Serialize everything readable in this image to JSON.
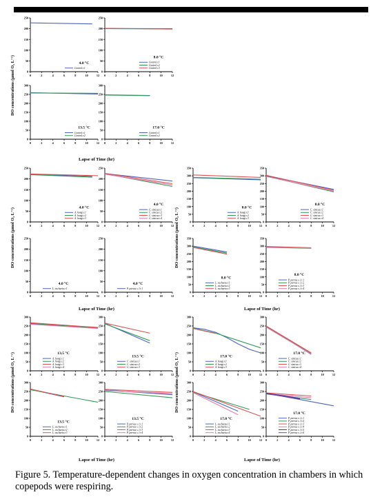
{
  "caption": "Figure 5. Temperature-dependent changes in oxygen concentration in chambers in which copepods were respiring.",
  "colors": {
    "blue": "#4b63c8",
    "green": "#2e9a55",
    "red": "#e05050",
    "pink": "#e07aa8",
    "navy": "#303a9a",
    "purple": "#7a3aa0"
  },
  "blocks": [
    {
      "ylabel": "DO concentrations (μmol O₂ L⁻¹)",
      "xlabel": "Lapse  of  Time (hr)"
    },
    {
      "ylabel": "DO concentrations (μmol O₂ L⁻¹)",
      "xlabel": "Lapse  of  Time (hr)",
      "ylabel2": "DO concentrations (μmol O₂ L⁻¹)",
      "xlabel2": "Lapse  of  Time (hr)"
    },
    {
      "ylabel": "DO concentrations (μmol O₂ L⁻¹)",
      "xlabel": "Lapse  of  Time (hr)",
      "ylabel2": "DO concentrations (μmol O₂ L⁻¹)",
      "xlabel2": "Lapse  of  Time (hr)"
    }
  ],
  "chart_data": [
    {
      "type": "line",
      "temp": "4.0 °C",
      "xlim": [
        0,
        12
      ],
      "ylim": [
        0,
        250
      ],
      "series": [
        {
          "name": "Control.r.1",
          "color": "blue",
          "x": [
            0,
            11
          ],
          "y": [
            227,
            222
          ]
        }
      ]
    },
    {
      "type": "line",
      "temp": "8.0 °C",
      "xlim": [
        0,
        12
      ],
      "ylim": [
        0,
        250
      ],
      "series": [
        {
          "name": "Control.r.1",
          "color": "blue",
          "x": [
            0,
            12
          ],
          "y": [
            201,
            200
          ]
        },
        {
          "name": "Control.r.2",
          "color": "green",
          "x": [
            0,
            12
          ],
          "y": [
            200,
            199
          ]
        },
        {
          "name": "Control.r.3",
          "color": "red",
          "x": [
            0,
            12
          ],
          "y": [
            202,
            198
          ]
        }
      ]
    },
    {
      "type": "line",
      "temp": "13.5 °C",
      "xlim": [
        0,
        12
      ],
      "ylim": [
        0,
        300
      ],
      "series": [
        {
          "name": "Control.r.1",
          "color": "blue",
          "x": [
            0,
            12
          ],
          "y": [
            260,
            252
          ]
        },
        {
          "name": "Control.r.2",
          "color": "green",
          "x": [
            0,
            12
          ],
          "y": [
            258,
            256
          ]
        }
      ]
    },
    {
      "type": "line",
      "temp": "17.0 °C",
      "xlim": [
        0,
        12
      ],
      "ylim": [
        0,
        300
      ],
      "series": [
        {
          "name": "Control.r.1",
          "color": "blue",
          "x": [
            0,
            8
          ],
          "y": [
            248,
            244
          ]
        },
        {
          "name": "Control.r.2",
          "color": "green",
          "x": [
            0,
            8
          ],
          "y": [
            246,
            243
          ]
        }
      ]
    },
    {
      "type": "line",
      "temp": "4.0 °C",
      "xlim": [
        0,
        12
      ],
      "ylim": [
        0,
        250
      ],
      "series": [
        {
          "name": "A. hongi.r.1",
          "color": "blue",
          "x": [
            0,
            11
          ],
          "y": [
            222,
            212
          ]
        },
        {
          "name": "A. hongi.r.2",
          "color": "green",
          "x": [
            0,
            11
          ],
          "y": [
            220,
            208
          ]
        },
        {
          "name": "A. hongi.r.3",
          "color": "red",
          "x": [
            0,
            12
          ],
          "y": [
            223,
            215
          ]
        }
      ]
    },
    {
      "type": "line",
      "temp": "4.0 °C",
      "xlim": [
        0,
        12
      ],
      "ylim": [
        0,
        250
      ],
      "series": [
        {
          "name": "C. sinicus.r.1",
          "color": "blue",
          "x": [
            0,
            12
          ],
          "y": [
            225,
            190
          ]
        },
        {
          "name": "C. sinicus.r.2",
          "color": "green",
          "x": [
            0,
            12
          ],
          "y": [
            224,
            165
          ]
        },
        {
          "name": "C. sinicus.r.3",
          "color": "red",
          "x": [
            0,
            12
          ],
          "y": [
            226,
            178
          ]
        },
        {
          "name": "C. sinicus.r.4",
          "color": "pink",
          "x": [
            0,
            12
          ],
          "y": [
            222,
            172
          ]
        }
      ]
    },
    {
      "type": "line",
      "temp": "8.0 °C",
      "xlim": [
        0,
        12
      ],
      "ylim": [
        0,
        350
      ],
      "series": [
        {
          "name": "A. hongi.r.1",
          "color": "blue",
          "x": [
            0,
            12
          ],
          "y": [
            288,
            274
          ]
        },
        {
          "name": "A. hongi.r.2",
          "color": "green",
          "x": [
            0,
            12
          ],
          "y": [
            290,
            278
          ]
        },
        {
          "name": "A. hongi.r.3",
          "color": "red",
          "x": [
            0,
            12
          ],
          "y": [
            306,
            290
          ]
        }
      ]
    },
    {
      "type": "line",
      "temp": "8.0 °C",
      "xlim": [
        0,
        12
      ],
      "ylim": [
        0,
        350
      ],
      "series": [
        {
          "name": "C. sinicus.r.1",
          "color": "blue",
          "x": [
            0,
            12
          ],
          "y": [
            300,
            212
          ]
        },
        {
          "name": "C. sinicus.r.2",
          "color": "green",
          "x": [
            0,
            12
          ],
          "y": [
            298,
            196
          ]
        },
        {
          "name": "C. sinicus.r.3",
          "color": "red",
          "x": [
            0,
            12
          ],
          "y": [
            304,
            206
          ]
        },
        {
          "name": "C. sinicus.r.4",
          "color": "pink",
          "x": [
            0,
            12
          ],
          "y": [
            296,
            200
          ]
        }
      ]
    },
    {
      "type": "line",
      "temp": "4.0 °C",
      "xlim": [
        0,
        12
      ],
      "ylim": [
        0,
        250
      ],
      "series": [
        {
          "name": "L. euchaeta.r.1",
          "color": "blue",
          "x": [],
          "y": []
        }
      ]
    },
    {
      "type": "line",
      "temp": "4.0 °C",
      "xlim": [
        0,
        12
      ],
      "ylim": [
        0,
        250
      ],
      "series": [
        {
          "name": "P. parvus s. l.r.1",
          "color": "blue",
          "x": [],
          "y": []
        }
      ]
    },
    {
      "type": "line",
      "temp": "8.0 °C",
      "xlim": [
        0,
        12
      ],
      "ylim": [
        0,
        350
      ],
      "series": [
        {
          "name": "L. euchaeta.r.1",
          "color": "blue",
          "x": [
            0,
            6
          ],
          "y": [
            300,
            262
          ]
        },
        {
          "name": "L. euchaeta.r.2",
          "color": "green",
          "x": [
            0,
            6
          ],
          "y": [
            295,
            255
          ]
        },
        {
          "name": "L. euchaeta.r.3",
          "color": "red",
          "x": [
            0,
            6
          ],
          "y": [
            292,
            248
          ]
        }
      ]
    },
    {
      "type": "line",
      "temp": "8.0 °C",
      "xlim": [
        0,
        12
      ],
      "ylim": [
        0,
        350
      ],
      "series": [
        {
          "name": "P. parvus s. l.r.1",
          "color": "blue",
          "x": [
            0,
            8
          ],
          "y": [
            295,
            288
          ]
        },
        {
          "name": "P. parvus s. l.r.2",
          "color": "green",
          "x": [
            0,
            8
          ],
          "y": [
            292,
            286
          ]
        },
        {
          "name": "P. parvus s. l.r.3",
          "color": "red",
          "x": [
            0,
            8
          ],
          "y": [
            298,
            290
          ]
        },
        {
          "name": "P. parvus s. l.r.4",
          "color": "pink",
          "x": [
            0,
            8
          ],
          "y": [
            294,
            287
          ]
        }
      ]
    },
    {
      "type": "line",
      "temp": "13.5 °C",
      "xlim": [
        0,
        12
      ],
      "ylim": [
        0,
        300
      ],
      "series": [
        {
          "name": "A. hongi.r.1",
          "color": "blue",
          "x": [
            0,
            12
          ],
          "y": [
            262,
            240
          ]
        },
        {
          "name": "A. hongi.r.2",
          "color": "green",
          "x": [
            0,
            12
          ],
          "y": [
            265,
            238
          ]
        },
        {
          "name": "A. hongi.r.3",
          "color": "red",
          "x": [
            0,
            12
          ],
          "y": [
            268,
            242
          ]
        },
        {
          "name": "A. hongi.r.4",
          "color": "pink",
          "x": [
            0,
            12
          ],
          "y": [
            260,
            236
          ]
        }
      ]
    },
    {
      "type": "line",
      "temp": "13.5 °C",
      "xlim": [
        0,
        12
      ],
      "ylim": [
        0,
        300
      ],
      "series": [
        {
          "name": "C. sinicus.r.1",
          "color": "blue",
          "x": [
            0,
            8
          ],
          "y": [
            265,
            155
          ]
        },
        {
          "name": "C. sinicus.r.2",
          "color": "green",
          "x": [
            0,
            8
          ],
          "y": [
            262,
            168
          ]
        },
        {
          "name": "C. sinicus.r.3",
          "color": "red",
          "x": [
            0,
            8
          ],
          "y": [
            266,
            210
          ]
        }
      ]
    },
    {
      "type": "line",
      "temp": "17.0 °C",
      "xlim": [
        0,
        12
      ],
      "ylim": [
        0,
        300
      ],
      "series": [
        {
          "name": "A. hongi.r.1",
          "color": "blue",
          "x": [
            0,
            2,
            4,
            6,
            8,
            10,
            12
          ],
          "y": [
            240,
            232,
            215,
            185,
            150,
            120,
            100
          ]
        },
        {
          "name": "A. hongi.r.2",
          "color": "green",
          "x": [
            0,
            4,
            12
          ],
          "y": [
            238,
            210,
            128
          ]
        },
        {
          "name": "A. hongi.r.3",
          "color": "red",
          "x": [
            0,
            4
          ],
          "y": [
            236,
            208
          ]
        }
      ]
    },
    {
      "type": "line",
      "temp": "17.0 °C",
      "xlim": [
        0,
        12
      ],
      "ylim": [
        0,
        300
      ],
      "series": [
        {
          "name": "C. sinicus.r.1",
          "color": "blue",
          "x": [
            0,
            8
          ],
          "y": [
            248,
            92
          ]
        },
        {
          "name": "C. sinicus.r.2",
          "color": "green",
          "x": [
            0,
            8
          ],
          "y": [
            246,
            96
          ]
        },
        {
          "name": "C. sinicus.r.3",
          "color": "red",
          "x": [
            0,
            8
          ],
          "y": [
            250,
            100
          ]
        },
        {
          "name": "C. sinicus.r.4",
          "color": "pink",
          "x": [
            0,
            8
          ],
          "y": [
            244,
            94
          ]
        }
      ]
    },
    {
      "type": "line",
      "temp": "13.5 °C",
      "xlim": [
        0,
        12
      ],
      "ylim": [
        0,
        300
      ],
      "series": [
        {
          "name": "L. euchaeta.r.1",
          "color": "blue",
          "x": [
            0,
            6
          ],
          "y": [
            262,
            220
          ]
        },
        {
          "name": "L. euchaeta.r.2",
          "color": "green",
          "x": [
            0,
            12
          ],
          "y": [
            260,
            190
          ]
        },
        {
          "name": "L. euchaeta.r.3",
          "color": "red",
          "x": [
            0,
            6
          ],
          "y": [
            264,
            222
          ]
        }
      ]
    },
    {
      "type": "line",
      "temp": "13.5 °C",
      "xlim": [
        0,
        12
      ],
      "ylim": [
        0,
        300
      ],
      "series": [
        {
          "name": "P. parvus s. l.r.1",
          "color": "blue",
          "x": [
            0,
            12
          ],
          "y": [
            258,
            232
          ]
        },
        {
          "name": "P. parvus s. l.r.2",
          "color": "green",
          "x": [
            0,
            12
          ],
          "y": [
            250,
            215
          ]
        },
        {
          "name": "P. parvus s. l.r.3",
          "color": "red",
          "x": [
            0,
            12
          ],
          "y": [
            262,
            245
          ]
        },
        {
          "name": "P. parvus s. l.r.4",
          "color": "pink",
          "x": [
            0,
            12
          ],
          "y": [
            255,
            238
          ]
        }
      ]
    },
    {
      "type": "line",
      "temp": "17.0 °C",
      "xlim": [
        0,
        12
      ],
      "ylim": [
        0,
        300
      ],
      "series": [
        {
          "name": "L. euchaeta.r.1",
          "color": "blue",
          "x": [
            0,
            8
          ],
          "y": [
            248,
            140
          ]
        },
        {
          "name": "L. euchaeta.r.2",
          "color": "green",
          "x": [
            0,
            10
          ],
          "y": [
            246,
            150
          ]
        },
        {
          "name": "L. euchaeta.r.3",
          "color": "red",
          "x": [
            0,
            12
          ],
          "y": [
            250,
            112
          ]
        },
        {
          "name": "L. euchaeta.r.4",
          "color": "pink",
          "x": [
            0,
            8
          ],
          "y": [
            244,
            120
          ]
        }
      ]
    },
    {
      "type": "line",
      "temp": "17.0 °C",
      "xlim": [
        0,
        12
      ],
      "ylim": [
        0,
        300
      ],
      "series": [
        {
          "name": "P. parvus s. l.r.1",
          "color": "blue",
          "x": [
            0,
            12
          ],
          "y": [
            240,
            170
          ]
        },
        {
          "name": "P. parvus s. l.r.2",
          "color": "green",
          "x": [
            0,
            8
          ],
          "y": [
            236,
            205
          ]
        },
        {
          "name": "P. parvus s. l.r.3",
          "color": "red",
          "x": [
            0,
            8
          ],
          "y": [
            242,
            225
          ]
        },
        {
          "name": "P. parvus s. l.r.4",
          "color": "pink",
          "x": [
            0,
            8
          ],
          "y": [
            238,
            215
          ]
        },
        {
          "name": "P. parvus s. l.r.5",
          "color": "navy",
          "x": [
            0,
            6
          ],
          "y": [
            240,
            212
          ]
        },
        {
          "name": "P. parvus s. l.r.6",
          "color": "purple",
          "x": [
            0,
            6
          ],
          "y": [
            238,
            208
          ]
        }
      ]
    }
  ]
}
